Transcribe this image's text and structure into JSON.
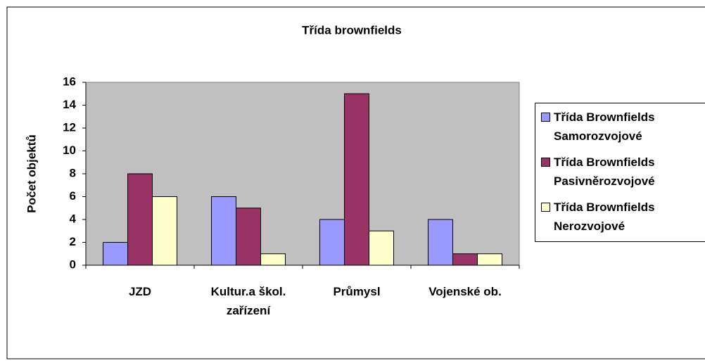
{
  "chart_data": {
    "type": "bar",
    "title": "Třída brownfields",
    "y_label": "Počet objektů",
    "categories": [
      "JZD",
      "Kultur.a škol. zařízení",
      "Průmysl",
      "Vojenské ob."
    ],
    "series": [
      {
        "name": "Třída Brownfields Samorozvojové",
        "color": "#9999ff",
        "values": [
          2,
          6,
          4,
          4
        ]
      },
      {
        "name": "Třída Brownfields Pasivněrozvojové",
        "color": "#993366",
        "values": [
          8,
          5,
          15,
          1
        ]
      },
      {
        "name": "Třída Brownfields Nerozvojové",
        "color": "#ffffcc",
        "values": [
          6,
          1,
          3,
          1
        ]
      }
    ],
    "ylim": [
      0,
      16
    ],
    "yticks": [
      0,
      2,
      4,
      6,
      8,
      10,
      12,
      14,
      16
    ],
    "grid": false,
    "legend": "right"
  }
}
